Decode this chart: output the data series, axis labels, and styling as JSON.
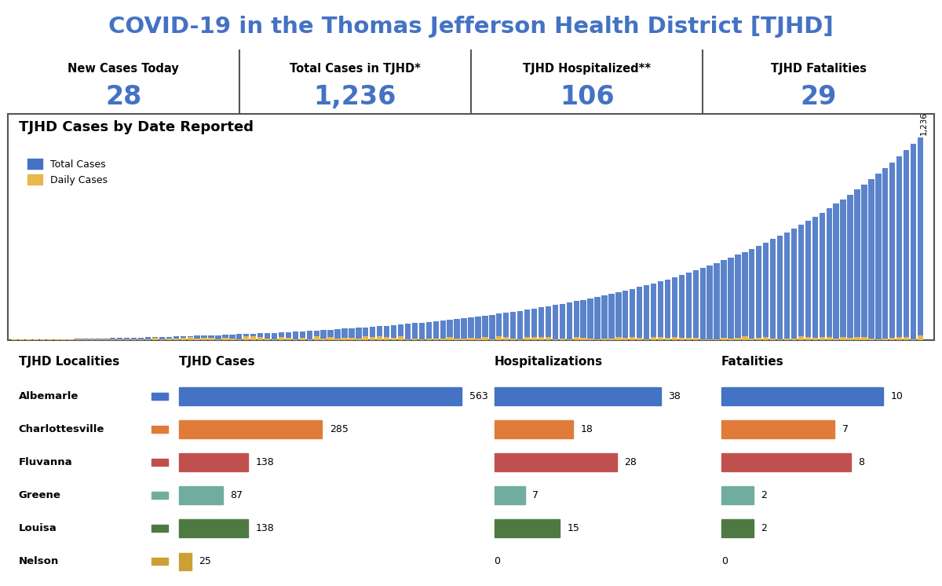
{
  "title": "COVID-19 in the Thomas Jefferson Health District [TJHD]",
  "title_color": "#4472C4",
  "summary_labels": [
    "New Cases Today",
    "Total Cases in TJHD*",
    "TJHD Hospitalized**",
    "TJHD Fatalities"
  ],
  "summary_values": [
    "28",
    "1,236",
    "106",
    "29"
  ],
  "bar_chart_title": "TJHD Cases by Date Reported",
  "total_cases_color": "#4472C4",
  "daily_cases_color": "#E8B84B",
  "bar_label": "1,236",
  "localities": [
    "Albemarle",
    "Charlottesville",
    "Fluvanna",
    "Greene",
    "Louisa",
    "Nelson"
  ],
  "locality_colors": [
    "#4472C4",
    "#E07B39",
    "#C0504D",
    "#70AD9F",
    "#4F7942",
    "#CBA135"
  ],
  "cases": [
    563,
    285,
    138,
    87,
    138,
    25
  ],
  "hospitalizations": [
    38,
    18,
    28,
    7,
    15,
    0
  ],
  "fatalities": [
    10,
    7,
    8,
    2,
    2,
    0
  ],
  "bg_color": "#FFFFFF",
  "border_color": "#555555",
  "n_days": 130,
  "total_max": 1236
}
